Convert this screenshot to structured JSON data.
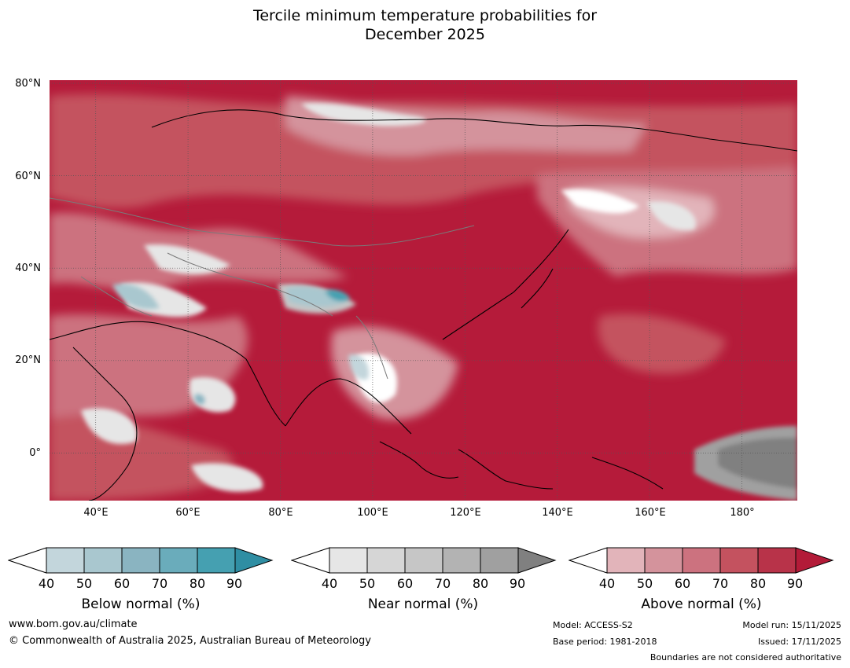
{
  "title": {
    "line1": "Tercile minimum temperature probabilities for",
    "line2": "December 2025"
  },
  "map": {
    "lat_labels": [
      "80°N",
      "60°N",
      "40°N",
      "20°N",
      "0°"
    ],
    "lon_labels": [
      "40°E",
      "60°E",
      "80°E",
      "100°E",
      "120°E",
      "140°E",
      "160°E",
      "180°"
    ],
    "extent": {
      "lon_min": 30,
      "lon_max": 192,
      "lat_min": -10,
      "lat_max": 81
    },
    "gridlines": "dotted"
  },
  "colorbars": [
    {
      "id": "below",
      "title": "Below normal (%)",
      "ticks": [
        "40",
        "50",
        "60",
        "70",
        "80",
        "90"
      ],
      "colors": [
        "#ffffff",
        "#c3d6dc",
        "#a9c7cf",
        "#8ab4c1",
        "#6aacbb",
        "#45a0b1",
        "#2f8ea3"
      ]
    },
    {
      "id": "near",
      "title": "Near normal (%)",
      "ticks": [
        "40",
        "50",
        "60",
        "70",
        "80",
        "90"
      ],
      "colors": [
        "#ffffff",
        "#e6e6e6",
        "#d6d6d6",
        "#c6c6c6",
        "#b3b3b3",
        "#a0a0a0",
        "#808080"
      ]
    },
    {
      "id": "above",
      "title": "Above normal (%)",
      "ticks": [
        "40",
        "50",
        "60",
        "70",
        "80",
        "90"
      ],
      "colors": [
        "#ffffff",
        "#e2b4ba",
        "#d4939c",
        "#cc727f",
        "#c4525f",
        "#b83349",
        "#b31b38"
      ]
    }
  ],
  "footer": {
    "website": "www.bom.gov.au/climate",
    "copyright": "© Commonwealth of Australia 2025, Australian Bureau of Meteorology",
    "model": "Model: ACCESS-S2",
    "base_period": "Base period: 1981-2018",
    "model_run": "Model run: 15/11/2025",
    "issued": "Issued: 17/11/2025",
    "disclaimer": "Boundaries are not considered authoritative"
  }
}
